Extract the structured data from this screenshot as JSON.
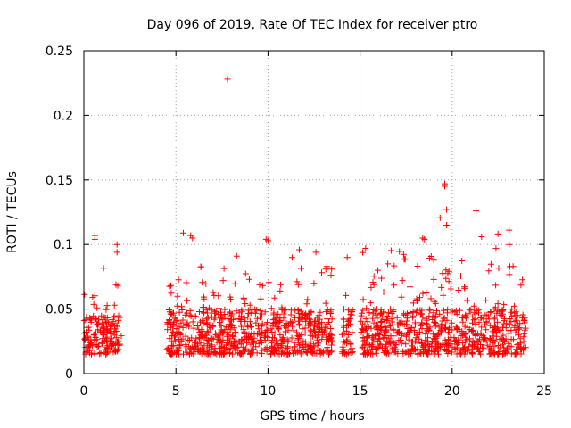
{
  "chart_data": {
    "type": "scatter",
    "title": "Day 096 of 2019, Rate Of TEC Index for receiver ptro",
    "xlabel": "GPS time / hours",
    "ylabel": "ROTI / TECUs",
    "xlim": [
      0,
      25
    ],
    "ylim": [
      0,
      0.25
    ],
    "x_ticks": [
      0,
      5,
      10,
      15,
      20,
      25
    ],
    "x_tick_labels": [
      "0",
      "5",
      "10",
      "15",
      "20",
      "25"
    ],
    "y_ticks": [
      0,
      0.05,
      0.1,
      0.15,
      0.2,
      0.25
    ],
    "y_tick_labels": [
      "0",
      "0.05",
      "0.1",
      "0.15",
      "0.2",
      "0.25"
    ],
    "grid": true,
    "marker": "+",
    "color": "#ff0000",
    "series": [
      {
        "name": "ROTI",
        "clusters": [
          {
            "x_range": [
              0.0,
              2.05
            ],
            "y_base": [
              0.015,
              0.045
            ],
            "peak_max": 0.107
          },
          {
            "x_range": [
              4.5,
              13.5
            ],
            "y_base": [
              0.015,
              0.05
            ],
            "peak_max": 0.109
          },
          {
            "x_range": [
              14.0,
              14.6
            ],
            "y_base": [
              0.015,
              0.05
            ],
            "peak_max": 0.09
          },
          {
            "x_range": [
              15.0,
              24.0
            ],
            "y_base": [
              0.015,
              0.05
            ],
            "peak_max": 0.147
          }
        ],
        "points": [
          {
            "x": 7.8,
            "y": 0.228
          },
          {
            "x": 19.6,
            "y": 0.147
          },
          {
            "x": 19.6,
            "y": 0.145
          },
          {
            "x": 19.7,
            "y": 0.127
          },
          {
            "x": 21.3,
            "y": 0.126
          },
          {
            "x": 0.6,
            "y": 0.107
          },
          {
            "x": 0.6,
            "y": 0.104
          },
          {
            "x": 5.4,
            "y": 0.109
          },
          {
            "x": 5.8,
            "y": 0.107
          },
          {
            "x": 5.9,
            "y": 0.105
          },
          {
            "x": 9.9,
            "y": 0.104
          },
          {
            "x": 10.0,
            "y": 0.103
          },
          {
            "x": 1.8,
            "y": 0.1
          },
          {
            "x": 1.8,
            "y": 0.094
          },
          {
            "x": 18.4,
            "y": 0.105
          },
          {
            "x": 18.5,
            "y": 0.104
          },
          {
            "x": 21.6,
            "y": 0.106
          },
          {
            "x": 23.1,
            "y": 0.1
          },
          {
            "x": 15.3,
            "y": 0.097
          },
          {
            "x": 19.7,
            "y": 0.115
          },
          {
            "x": 11.7,
            "y": 0.096
          },
          {
            "x": 12.6,
            "y": 0.094
          },
          {
            "x": 8.3,
            "y": 0.091
          },
          {
            "x": 14.3,
            "y": 0.09
          },
          {
            "x": 13.2,
            "y": 0.083
          },
          {
            "x": 16.5,
            "y": 0.085
          }
        ]
      }
    ]
  }
}
